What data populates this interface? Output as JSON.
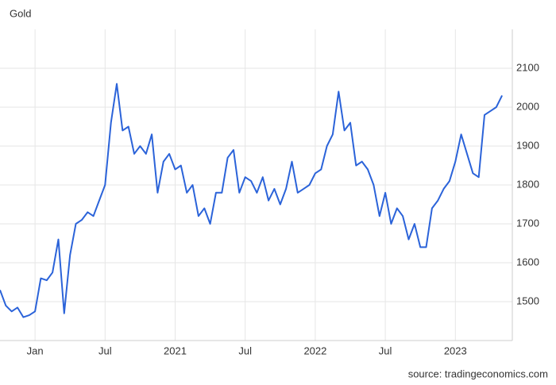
{
  "chart_data": {
    "type": "line",
    "title": "Gold",
    "source": "source: tradingeconomics.com",
    "categories": [
      null,
      null,
      null,
      null,
      null,
      null,
      "Jan",
      null,
      null,
      null,
      null,
      null,
      null,
      null,
      null,
      null,
      null,
      null,
      "Jul",
      null,
      null,
      null,
      null,
      null,
      null,
      null,
      null,
      null,
      null,
      null,
      "2021",
      null,
      null,
      null,
      null,
      null,
      null,
      null,
      null,
      null,
      null,
      null,
      "Jul",
      null,
      null,
      null,
      null,
      null,
      null,
      null,
      null,
      null,
      null,
      null,
      "2022",
      null,
      null,
      null,
      null,
      null,
      null,
      null,
      null,
      null,
      null,
      null,
      "Jul",
      null,
      null,
      null,
      null,
      null,
      null,
      null,
      null,
      null,
      null,
      null,
      "2023",
      null,
      null,
      null,
      null,
      null,
      null,
      null,
      null
    ],
    "series": [
      {
        "name": "Gold",
        "color": "#2b63d9",
        "values": [
          1530,
          1490,
          1475,
          1485,
          1460,
          1465,
          1475,
          1560,
          1555,
          1575,
          1660,
          1470,
          1620,
          1700,
          1710,
          1730,
          1720,
          1760,
          1800,
          1960,
          2060,
          1940,
          1950,
          1880,
          1900,
          1880,
          1930,
          1780,
          1860,
          1880,
          1840,
          1850,
          1780,
          1800,
          1720,
          1740,
          1700,
          1780,
          1780,
          1870,
          1890,
          1780,
          1820,
          1810,
          1780,
          1820,
          1760,
          1790,
          1750,
          1790,
          1860,
          1780,
          1790,
          1800,
          1830,
          1840,
          1900,
          1930,
          2040,
          1940,
          1960,
          1850,
          1860,
          1840,
          1800,
          1720,
          1780,
          1700,
          1740,
          1720,
          1660,
          1700,
          1640,
          1640,
          1740,
          1760,
          1790,
          1810,
          1860,
          1930,
          1880,
          1830,
          1820,
          1980,
          1990,
          2000,
          2030
        ]
      }
    ],
    "ylim": [
      1400,
      2200
    ],
    "yticks": [
      1500,
      1600,
      1700,
      1800,
      1900,
      2000,
      2100
    ],
    "grid": true
  }
}
